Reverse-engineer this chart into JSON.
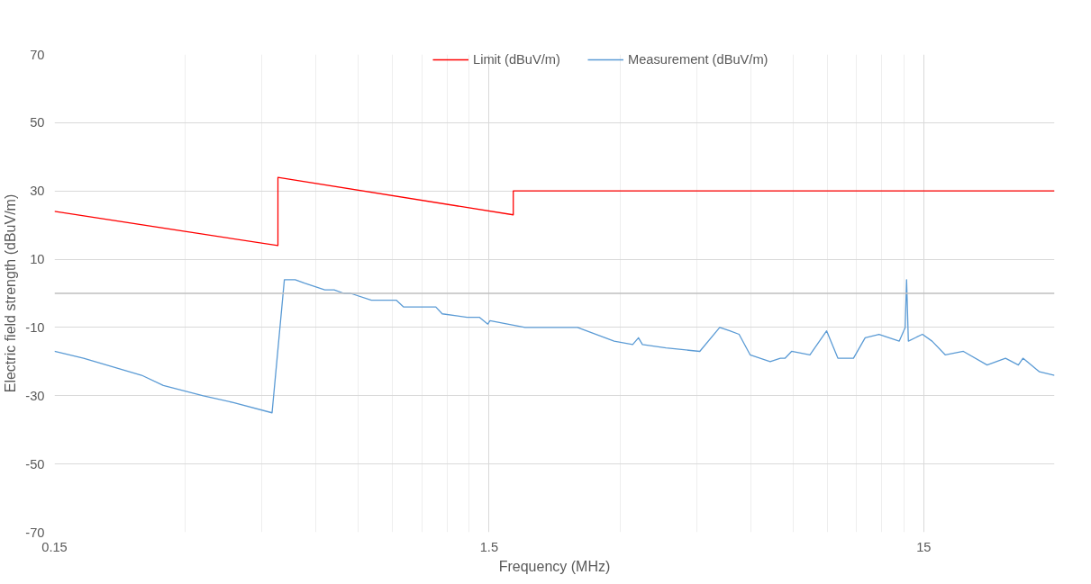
{
  "chart_data": {
    "type": "line",
    "xlabel": "Frequency (MHz)",
    "ylabel": "Electric field strength (dBuV/m)",
    "log": "x",
    "grid": true,
    "legend": "top",
    "marker": "none",
    "line_style": "solid",
    "xlim": [
      0.15,
      30
    ],
    "ylim": [
      -70,
      70
    ],
    "xticks": [
      0.15,
      1.5,
      15
    ],
    "yticks": [
      -70,
      -50,
      -30,
      -10,
      10,
      30,
      50,
      70
    ],
    "ref_lines": [
      {
        "axis": "y",
        "value": 0,
        "color": "#bfbfbf"
      }
    ],
    "series": [
      {
        "name": "Limit (dBuV/m)",
        "color": "#ff0000",
        "x": [
          0.15,
          0.49,
          0.49,
          1.705,
          1.705,
          30
        ],
        "values": [
          24,
          14,
          34,
          23,
          30,
          30
        ]
      },
      {
        "name": "Measurement (dBuV/m)",
        "color": "#5b9bd5",
        "x": [
          0.15,
          0.175,
          0.238,
          0.267,
          0.33,
          0.387,
          0.475,
          0.507,
          0.537,
          0.564,
          0.628,
          0.66,
          0.695,
          0.72,
          0.804,
          0.917,
          0.954,
          1.011,
          1.131,
          1.17,
          1.335,
          1.424,
          1.49,
          1.507,
          1.815,
          2.237,
          2.396,
          2.91,
          3.21,
          3.31,
          3.38,
          3.83,
          4.58,
          5.09,
          5.37,
          5.64,
          5.98,
          6.65,
          7.02,
          7.2,
          7.45,
          8.21,
          8.97,
          9.52,
          10.34,
          11.0,
          11.84,
          13.18,
          13.6,
          13.7,
          13.83,
          14.9,
          15.68,
          16.81,
          18.51,
          20.99,
          23.14,
          24.77,
          25.38,
          27.7,
          30
        ],
        "values": [
          -17,
          -19,
          -24,
          -27,
          -30,
          -32,
          -35,
          4,
          4,
          3,
          1,
          1,
          0,
          0,
          -2,
          -2,
          -4,
          -4,
          -4,
          -6,
          -7,
          -7,
          -9,
          -8,
          -10,
          -10,
          -10,
          -14,
          -15,
          -13,
          -15,
          -16,
          -17,
          -10,
          -11,
          -12,
          -18,
          -20,
          -19,
          -19,
          -17,
          -18,
          -11,
          -19,
          -19,
          -13,
          -12,
          -14,
          -10,
          4,
          -14,
          -12,
          -14,
          -18,
          -17,
          -21,
          -19,
          -21,
          -19,
          -23,
          -24
        ]
      }
    ]
  }
}
